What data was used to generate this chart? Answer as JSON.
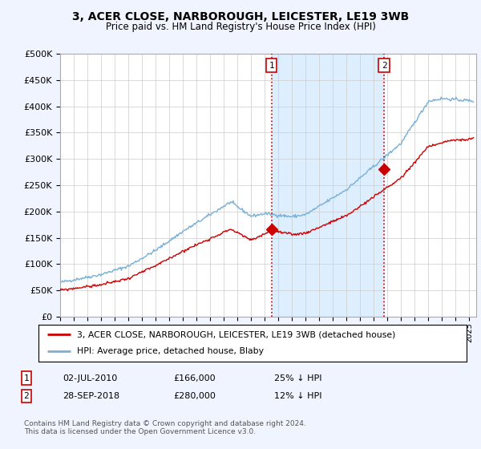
{
  "title": "3, ACER CLOSE, NARBOROUGH, LEICESTER, LE19 3WB",
  "subtitle": "Price paid vs. HM Land Registry's House Price Index (HPI)",
  "ylim": [
    0,
    500000
  ],
  "yticks": [
    0,
    50000,
    100000,
    150000,
    200000,
    250000,
    300000,
    350000,
    400000,
    450000,
    500000
  ],
  "xlim_start": 1995.0,
  "xlim_end": 2025.5,
  "xtick_years": [
    1995,
    1996,
    1997,
    1998,
    1999,
    2000,
    2001,
    2002,
    2003,
    2004,
    2005,
    2006,
    2007,
    2008,
    2009,
    2010,
    2011,
    2012,
    2013,
    2014,
    2015,
    2016,
    2017,
    2018,
    2019,
    2020,
    2021,
    2022,
    2023,
    2024,
    2025
  ],
  "hpi_color": "#7ab0d4",
  "price_color": "#cc0000",
  "vline_color": "#cc0000",
  "marker1_x": 2010.5,
  "marker1_y": 166000,
  "marker2_x": 2018.75,
  "marker2_y": 280000,
  "legend_line1": "3, ACER CLOSE, NARBOROUGH, LEICESTER, LE19 3WB (detached house)",
  "legend_line2": "HPI: Average price, detached house, Blaby",
  "annotation1_num": "1",
  "annotation1_date": "02-JUL-2010",
  "annotation1_price": "£166,000",
  "annotation1_hpi": "25% ↓ HPI",
  "annotation2_num": "2",
  "annotation2_date": "28-SEP-2018",
  "annotation2_price": "£280,000",
  "annotation2_hpi": "12% ↓ HPI",
  "footnote": "Contains HM Land Registry data © Crown copyright and database right 2024.\nThis data is licensed under the Open Government Licence v3.0.",
  "bg_color": "#f0f4ff",
  "span_color": "#ddeeff",
  "grid_color": "#cccccc"
}
